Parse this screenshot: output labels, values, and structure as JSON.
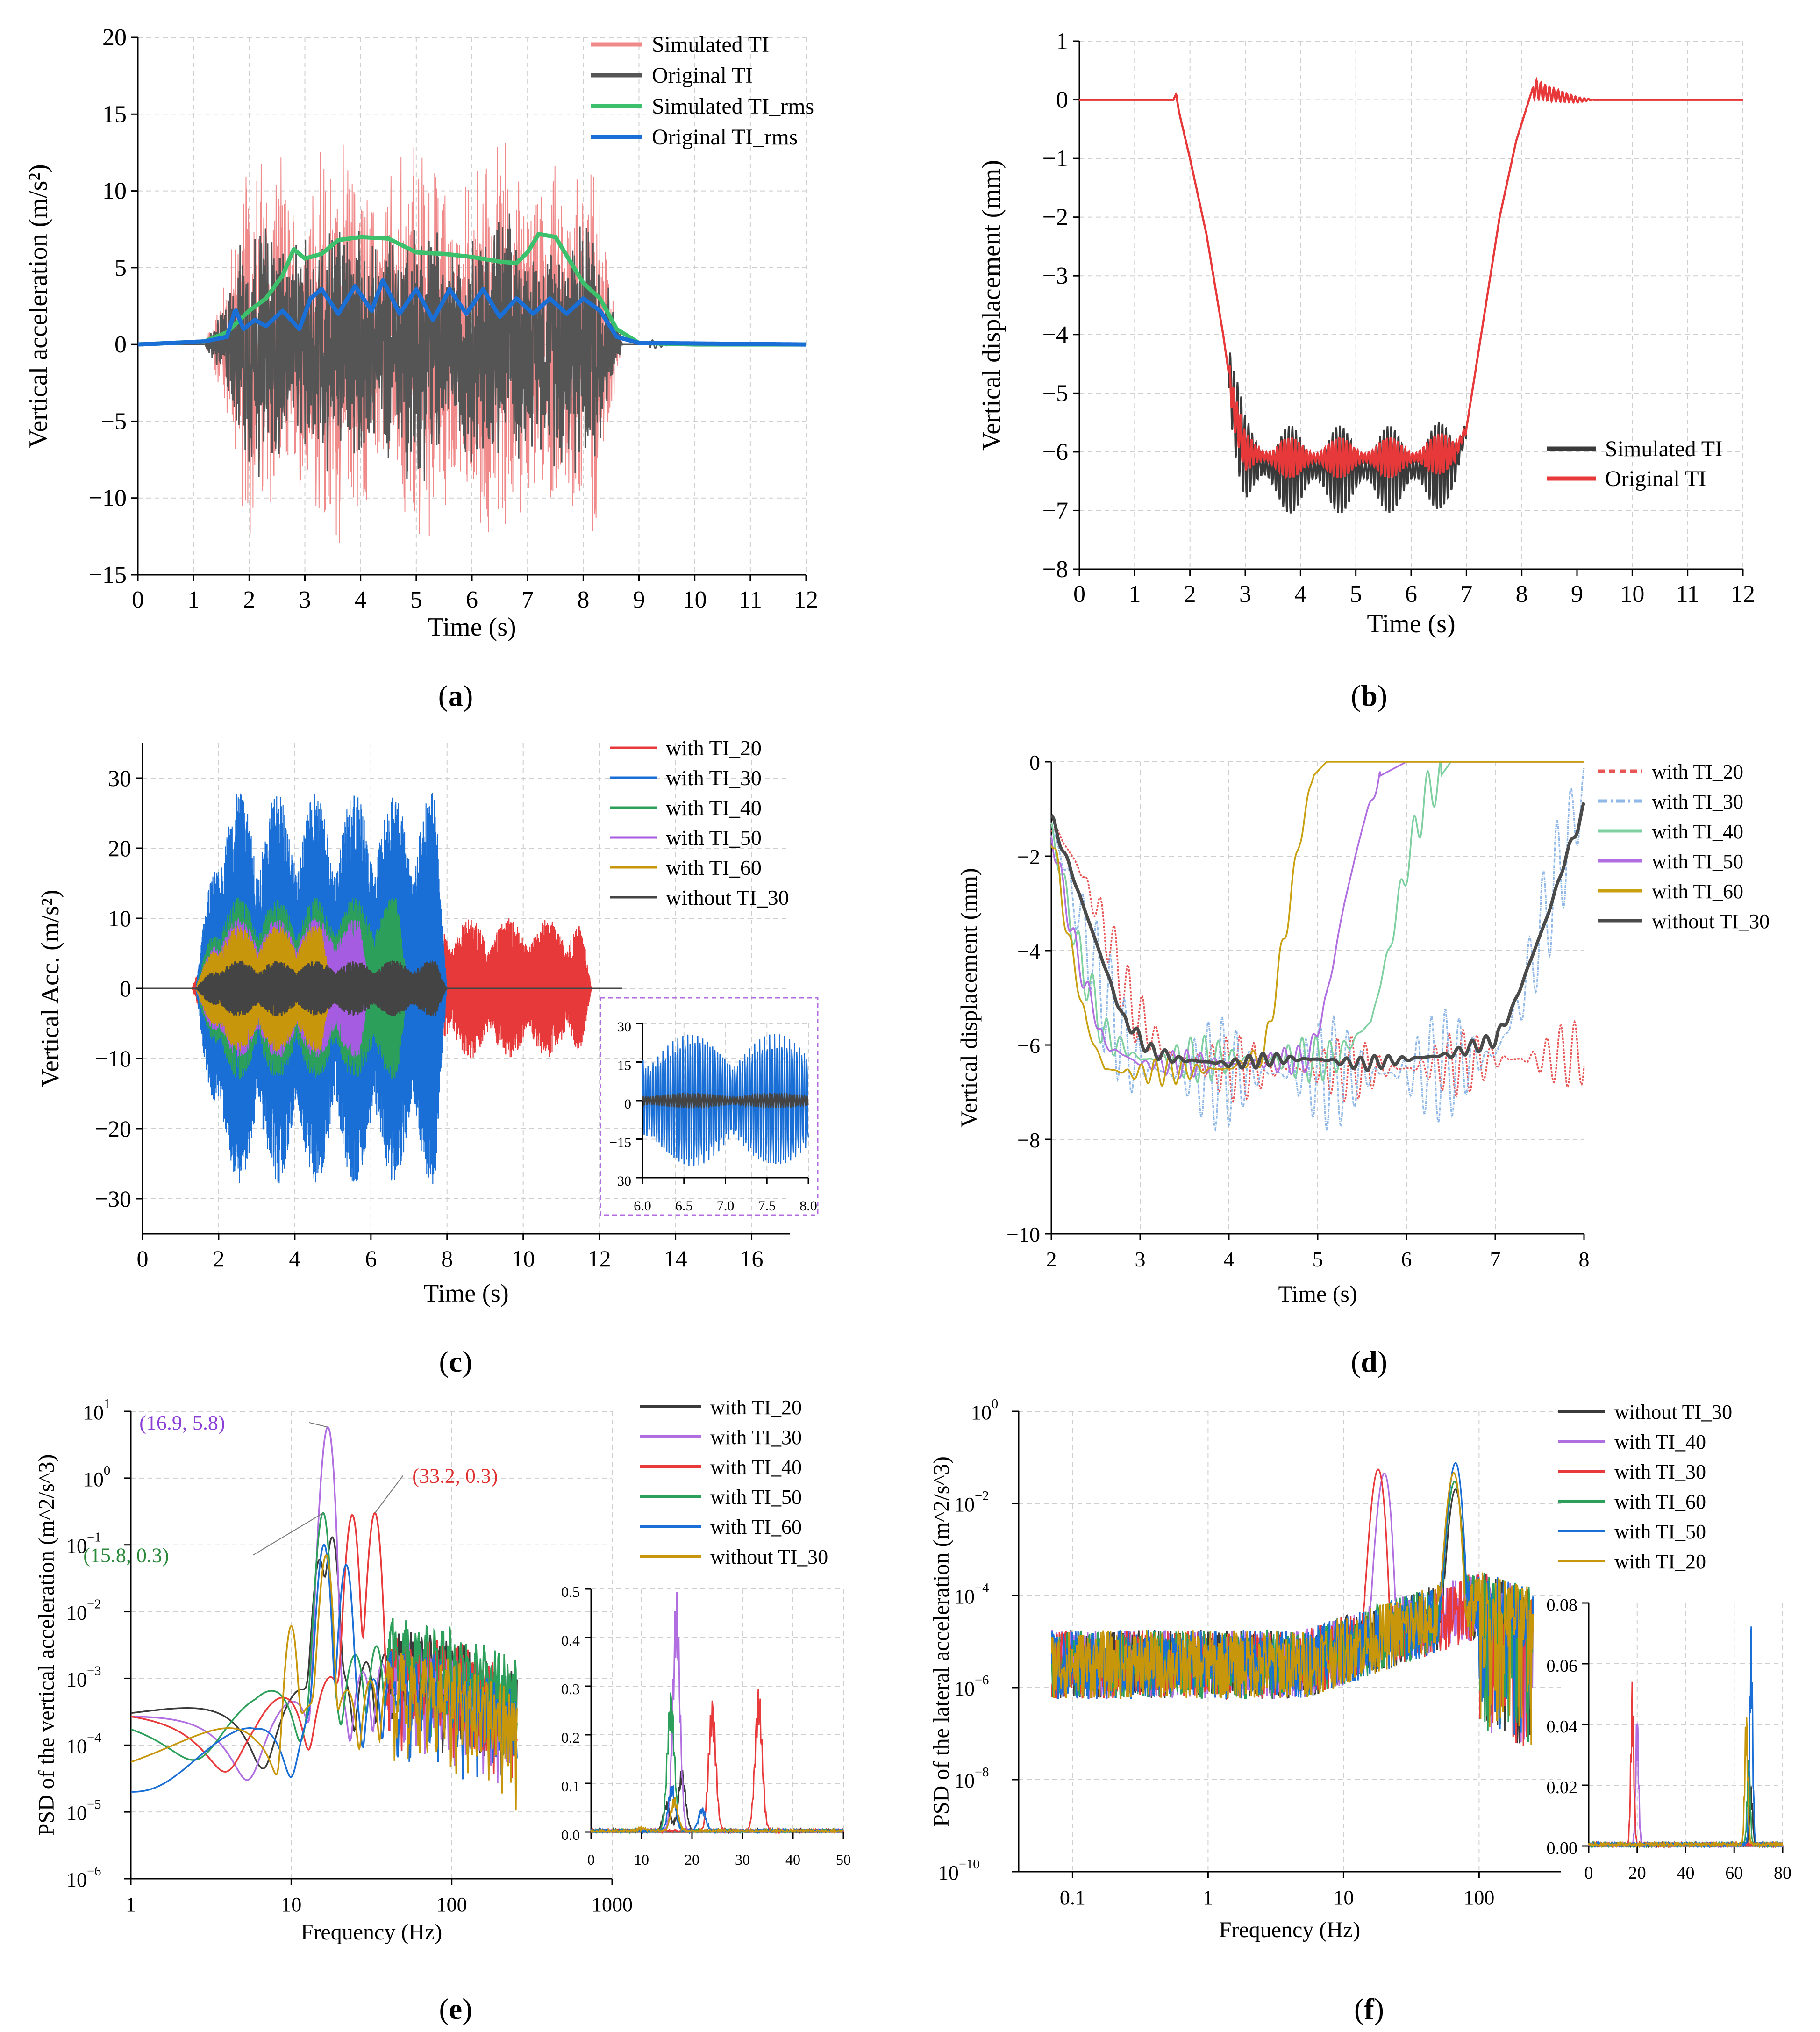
{
  "panels": {
    "a": {
      "caption": "(a)",
      "caption_letter": "a"
    },
    "b": {
      "caption": "(b)",
      "caption_letter": "b"
    },
    "c": {
      "caption": "(c)",
      "caption_letter": "c"
    },
    "d": {
      "caption": "(d)",
      "caption_letter": "d"
    },
    "e": {
      "caption": "(e)",
      "caption_letter": "e"
    },
    "f": {
      "caption": "(f)",
      "caption_letter": "f"
    }
  },
  "chart_data": [
    {
      "id": "a",
      "type": "line",
      "xlabel": "Time (s)",
      "ylabel": "Vertical acceleration (m/s²)",
      "xlim": [
        0,
        12
      ],
      "ylim": [
        -15,
        20
      ],
      "xticks": [
        0,
        1,
        2,
        3,
        4,
        5,
        6,
        7,
        8,
        9,
        10,
        11,
        12
      ],
      "yticks": [
        -15,
        -10,
        -5,
        0,
        5,
        10,
        15,
        20
      ],
      "ytick_labels": [
        "−15",
        "−10",
        "−5",
        "0",
        "5",
        "10",
        "15",
        "20"
      ],
      "series": [
        {
          "name": "Simulated TI",
          "color": "#f08a8a",
          "kind": "osc",
          "amp_max": 15
        },
        {
          "name": "Original TI",
          "color": "#555555",
          "kind": "osc",
          "amp_max": 10
        },
        {
          "name": "Simulated TI_rms",
          "color": "#3cc06c",
          "kind": "rms",
          "x": [
            0,
            1.2,
            1.6,
            1.8,
            2.0,
            2.3,
            2.6,
            2.8,
            3.0,
            3.3,
            3.6,
            4.0,
            4.5,
            5.0,
            5.5,
            6.0,
            6.5,
            6.8,
            7.0,
            7.2,
            7.5,
            7.8,
            8.0,
            8.3,
            8.6,
            9.0,
            10,
            12
          ],
          "y": [
            0,
            0.2,
            0.8,
            1.5,
            2.2,
            3.0,
            4.5,
            6.2,
            5.6,
            5.9,
            6.8,
            7.0,
            6.9,
            6.0,
            5.9,
            5.7,
            5.4,
            5.3,
            6.0,
            7.2,
            7.0,
            5.2,
            4.0,
            3.0,
            1.0,
            0.1,
            0,
            0
          ]
        },
        {
          "name": "Original TI_rms",
          "color": "#1a6fd6",
          "kind": "rms",
          "x": [
            0,
            1.2,
            1.6,
            1.75,
            1.9,
            2.1,
            2.3,
            2.6,
            2.9,
            3.1,
            3.3,
            3.6,
            3.9,
            4.2,
            4.4,
            4.7,
            5.0,
            5.3,
            5.6,
            5.9,
            6.2,
            6.5,
            6.8,
            7.1,
            7.4,
            7.7,
            8.0,
            8.3,
            8.6,
            9.0,
            12
          ],
          "y": [
            0,
            0.2,
            0.5,
            2.3,
            1.0,
            1.6,
            1.2,
            2.2,
            1.0,
            3.0,
            3.6,
            2.0,
            3.8,
            2.2,
            4.2,
            2.0,
            3.6,
            1.6,
            3.6,
            2.0,
            3.6,
            1.8,
            3.0,
            2.0,
            3.0,
            2.0,
            3.0,
            2.2,
            0.5,
            0.1,
            0
          ]
        }
      ]
    },
    {
      "id": "b",
      "type": "line",
      "xlabel": "Time (s)",
      "ylabel": "Vertical displacement (mm)",
      "xlim": [
        0,
        12
      ],
      "ylim": [
        -8,
        1
      ],
      "xticks": [
        0,
        1,
        2,
        3,
        4,
        5,
        6,
        7,
        8,
        9,
        10,
        11,
        12
      ],
      "yticks": [
        -8,
        -7,
        -6,
        -5,
        -4,
        -3,
        -2,
        -1,
        0,
        1
      ],
      "ytick_labels": [
        "−8",
        "−7",
        "−6",
        "−5",
        "−4",
        "−3",
        "−2",
        "−1",
        "0",
        "1"
      ],
      "series": [
        {
          "name": "Simulated TI",
          "color": "#3a3a3a",
          "x": [
            0,
            1.7,
            1.75,
            1.8,
            2.0,
            2.3,
            2.6,
            2.8,
            3.0,
            3.5,
            4.0,
            5.0,
            6.0,
            6.8,
            7.0,
            7.3,
            7.6,
            7.9,
            8.2,
            8.5,
            9.0,
            12
          ],
          "y": [
            0,
            0,
            0.1,
            -0.2,
            -1.0,
            -2.3,
            -4.0,
            -5.3,
            -6.1,
            -6.3,
            -6.3,
            -6.3,
            -6.3,
            -6.2,
            -5.6,
            -3.8,
            -2.0,
            -0.7,
            0.2,
            0.1,
            0,
            0
          ],
          "noise": [
            [
              2.7,
              7.0,
              0.75
            ]
          ]
        },
        {
          "name": "Original TI",
          "color": "#e8393a",
          "x": [
            0,
            1.7,
            1.75,
            1.8,
            2.0,
            2.3,
            2.6,
            2.8,
            3.0,
            3.5,
            4.0,
            5.0,
            6.0,
            6.8,
            7.0,
            7.3,
            7.6,
            7.9,
            8.2,
            8.5,
            9.0,
            12
          ],
          "y": [
            0,
            0,
            0.1,
            -0.2,
            -1.0,
            -2.3,
            -4.0,
            -5.3,
            -6.0,
            -6.1,
            -6.1,
            -6.1,
            -6.1,
            -6.0,
            -5.6,
            -3.8,
            -2.0,
            -0.7,
            0.2,
            0.1,
            0,
            0
          ],
          "noise": [
            [
              2.7,
              7.0,
              0.35
            ]
          ]
        }
      ]
    },
    {
      "id": "c",
      "type": "line",
      "xlabel": "Time (s)",
      "ylabel": "Vertical Acc. (m/s²)",
      "xlim": [
        0,
        17
      ],
      "ylim": [
        -35,
        35
      ],
      "xticks": [
        0,
        2,
        4,
        6,
        8,
        10,
        12,
        14,
        16
      ],
      "yticks": [
        -30,
        -20,
        -10,
        0,
        10,
        20,
        30
      ],
      "ytick_labels": [
        "−30",
        "−20",
        "−10",
        "0",
        "10",
        "20",
        "30"
      ],
      "series": [
        {
          "name": "with TI_20",
          "color": "#e8393a",
          "t0": 1.3,
          "t1": 11.8,
          "amp": 10
        },
        {
          "name": "with TI_30",
          "color": "#1a6fd6",
          "t0": 1.4,
          "t1": 8.0,
          "amp": 28
        },
        {
          "name": "with TI_40",
          "color": "#2ca05a",
          "t0": 1.4,
          "t1": 7.0,
          "amp": 13
        },
        {
          "name": "with TI_50",
          "color": "#a55ce0",
          "t0": 1.4,
          "t1": 6.0,
          "amp": 10
        },
        {
          "name": "with TI_60",
          "color": "#c8960a",
          "t0": 1.4,
          "t1": 5.0,
          "amp": 9
        },
        {
          "name": "without TI_30",
          "color": "#444444",
          "t0": 1.4,
          "t1": 8.0,
          "amp": 4
        }
      ],
      "inset": {
        "xlim": [
          6.0,
          8.0
        ],
        "ylim": [
          -30,
          30
        ],
        "xticks": [
          6.0,
          6.5,
          7.0,
          7.5,
          8.0
        ],
        "xtick_labels": [
          "6.0",
          "6.5",
          "7.0",
          "7.5",
          "8.0"
        ],
        "yticks": [
          -30,
          -15,
          0,
          15,
          30
        ],
        "ytick_labels": [
          "−30",
          "−15",
          "0",
          "15",
          "30"
        ]
      }
    },
    {
      "id": "d",
      "type": "line",
      "xlabel": "Time (s)",
      "ylabel": "Vertical displacement (mm)",
      "xlim": [
        2,
        8
      ],
      "ylim": [
        -10,
        0
      ],
      "xticks": [
        2,
        3,
        4,
        5,
        6,
        7,
        8
      ],
      "yticks": [
        -10,
        -8,
        -6,
        -4,
        -2,
        0
      ],
      "ytick_labels": [
        "−10",
        "−8",
        "−6",
        "−4",
        "−2",
        "0"
      ],
      "series": [
        {
          "name": "with TI_20",
          "color": "#e85555",
          "dash": "14,9",
          "x": [
            2,
            2.3,
            2.6,
            2.9,
            3.3,
            4,
            5,
            6,
            7,
            7.5,
            7.8,
            8
          ],
          "y": [
            -1.3,
            -2.2,
            -3.5,
            -5.2,
            -6.2,
            -6.5,
            -6.5,
            -6.5,
            -6.3,
            -6.3,
            -6.2,
            -6.2
          ],
          "noise": 0.7
        },
        {
          "name": "with TI_30",
          "color": "#8fb8e8",
          "dash": "20,7,4,7",
          "x": [
            2,
            2.3,
            2.6,
            2.9,
            3.3,
            4,
            5,
            6,
            7,
            7.3,
            7.6,
            7.8,
            8
          ],
          "y": [
            -1.3,
            -3.2,
            -5.0,
            -6.3,
            -6.6,
            -6.6,
            -6.6,
            -6.6,
            -6.2,
            -5.0,
            -3.0,
            -1.8,
            -0.6
          ],
          "noise": 1.2
        },
        {
          "name": "with TI_40",
          "color": "#7fd0a0",
          "x": [
            2,
            2.3,
            2.6,
            3.0,
            4,
            5.2,
            5.6,
            5.8,
            6.0,
            6.2,
            6.5,
            8
          ],
          "y": [
            -1.4,
            -4.0,
            -5.8,
            -6.3,
            -6.3,
            -6.3,
            -5.5,
            -4.0,
            -2.2,
            -0.8,
            0,
            0
          ],
          "noise": 0.5
        },
        {
          "name": "with TI_50",
          "color": "#b06ee0",
          "x": [
            2,
            2.3,
            2.6,
            3.0,
            4,
            4.9,
            5.1,
            5.3,
            5.5,
            5.7,
            6.0,
            8
          ],
          "y": [
            -1.5,
            -4.2,
            -6.0,
            -6.4,
            -6.4,
            -6.3,
            -5.0,
            -3.0,
            -1.4,
            -0.3,
            0,
            0
          ],
          "noise": 0.3
        },
        {
          "name": "with TI_60",
          "color": "#c8a010",
          "x": [
            2,
            2.2,
            2.4,
            2.6,
            2.9,
            4,
            4.4,
            4.6,
            4.8,
            4.95,
            5.1,
            8
          ],
          "y": [
            -1.5,
            -3.8,
            -5.6,
            -6.5,
            -6.6,
            -6.5,
            -6.2,
            -4.0,
            -1.6,
            -0.3,
            0,
            0
          ],
          "noise": 0.3
        },
        {
          "name": "without TI_30",
          "color": "#4a4a4a",
          "width": 7,
          "x": [
            2,
            2.2,
            2.5,
            2.8,
            3.1,
            3.4,
            4,
            4.5,
            5.0,
            5.5,
            6.0,
            6.5,
            6.8,
            7.0,
            7.2,
            7.4,
            7.6,
            7.8,
            8
          ],
          "y": [
            -1.2,
            -2.2,
            -3.8,
            -5.4,
            -6.1,
            -6.3,
            -6.4,
            -6.3,
            -6.3,
            -6.4,
            -6.3,
            -6.2,
            -6.0,
            -5.9,
            -5.2,
            -4.2,
            -3.2,
            -2.0,
            -1.0
          ],
          "noise": 0.15
        }
      ]
    },
    {
      "id": "e",
      "type": "line",
      "xlabel": "Frequency (Hz)",
      "ylabel": "PSD of the vertical acceleration (m^2/s^3)",
      "xscale": "log",
      "yscale": "log",
      "xlim": [
        1,
        1000
      ],
      "ylim": [
        1e-06,
        10
      ],
      "xticks": [
        1,
        10,
        100,
        1000
      ],
      "xtick_labels": [
        "1",
        "10",
        "100",
        "1000"
      ],
      "yticks": [
        1e-06,
        1e-05,
        0.0001,
        0.001,
        0.01,
        0.1,
        1,
        10
      ],
      "ytick_base": "10",
      "ytick_exps": [
        "−6",
        "−5",
        "−4",
        "−3",
        "−2",
        "−1",
        "0",
        "1"
      ],
      "series": [
        {
          "name": "with TI_20",
          "color": "#3a3a3a",
          "peaks": [
            [
              18,
              0.13
            ],
            [
              15,
              0.06
            ]
          ],
          "base": 0.0002
        },
        {
          "name": "with TI_30",
          "color": "#b06ee0",
          "peaks": [
            [
              16.9,
              5.8
            ]
          ],
          "base": 0.00015
        },
        {
          "name": "with TI_40",
          "color": "#e83a3a",
          "peaks": [
            [
              33.2,
              0.3
            ],
            [
              24,
              0.28
            ]
          ],
          "base": 0.0002
        },
        {
          "name": "with TI_50",
          "color": "#2ca05a",
          "peaks": [
            [
              15.8,
              0.3
            ]
          ],
          "base": 0.0003
        },
        {
          "name": "with TI_60",
          "color": "#1a6fd6",
          "peaks": [
            [
              16,
              0.1
            ],
            [
              22,
              0.05
            ]
          ],
          "base": 0.0001
        },
        {
          "name": "without TI_30",
          "color": "#c8960a",
          "peaks": [
            [
              16.5,
              0.07
            ],
            [
              10,
              0.006
            ]
          ],
          "base": 0.0001
        }
      ],
      "annotations": [
        {
          "text": "(16.9, 5.8)",
          "color": "#8a3fd6",
          "x": 16.9,
          "y": 5.8
        },
        {
          "text": "(33.2, 0.3)",
          "color": "#e03030",
          "x": 33.2,
          "y": 0.3
        },
        {
          "text": "(15.8, 0.3)",
          "color": "#2a8a3a",
          "x": 15.8,
          "y": 0.3
        }
      ],
      "inset": {
        "xlim": [
          0,
          50
        ],
        "ylim": [
          0,
          0.5
        ],
        "xticks": [
          0,
          10,
          20,
          30,
          40,
          50
        ],
        "xtick_labels": [
          "0",
          "10",
          "20",
          "30",
          "40",
          "50"
        ],
        "yticks": [
          0,
          0.1,
          0.2,
          0.3,
          0.4,
          0.5
        ],
        "ytick_labels": [
          "0.0",
          "0.1",
          "0.2",
          "0.3",
          "0.4",
          "0.5"
        ]
      }
    },
    {
      "id": "f",
      "type": "line",
      "xlabel": "Frequency (Hz)",
      "ylabel": "PSD of the lateral acceleration (m^2/s^3)",
      "xscale": "log",
      "yscale": "log",
      "xlim": [
        0.04,
        400
      ],
      "ylim": [
        1e-10,
        1
      ],
      "xticks": [
        0.1,
        1,
        10,
        100
      ],
      "xtick_labels": [
        "0.1",
        "1",
        "10",
        "100"
      ],
      "yticks": [
        1e-10,
        1e-08,
        1e-06,
        0.0001,
        0.01,
        1
      ],
      "ytick_base": "10",
      "ytick_exps": [
        "−10",
        "−8",
        "−6",
        "−4",
        "−2",
        "0"
      ],
      "series": [
        {
          "name": "without TI_30",
          "color": "#3a3a3a",
          "peaks": [
            [
              67,
              0.02
            ]
          ]
        },
        {
          "name": "with TI_40",
          "color": "#b06ee0",
          "peaks": [
            [
              20,
              0.045
            ]
          ]
        },
        {
          "name": "with TI_30",
          "color": "#e83a3a",
          "peaks": [
            [
              18,
              0.055
            ]
          ]
        },
        {
          "name": "with TI_60",
          "color": "#2ca05a",
          "peaks": [
            [
              66,
              0.03
            ]
          ]
        },
        {
          "name": "with TI_50",
          "color": "#1a6fd6",
          "peaks": [
            [
              67,
              0.076
            ]
          ]
        },
        {
          "name": "with TI_20",
          "color": "#c8960a",
          "peaks": [
            [
              65,
              0.046
            ]
          ]
        }
      ],
      "inset": {
        "xlim": [
          0,
          80
        ],
        "ylim": [
          0,
          0.08
        ],
        "xticks": [
          0,
          20,
          40,
          60,
          80
        ],
        "xtick_labels": [
          "0",
          "20",
          "40",
          "60",
          "80"
        ],
        "yticks": [
          0,
          0.02,
          0.04,
          0.06,
          0.08
        ],
        "ytick_labels": [
          "0.00",
          "0.02",
          "0.04",
          "0.06",
          "0.08"
        ]
      }
    }
  ]
}
